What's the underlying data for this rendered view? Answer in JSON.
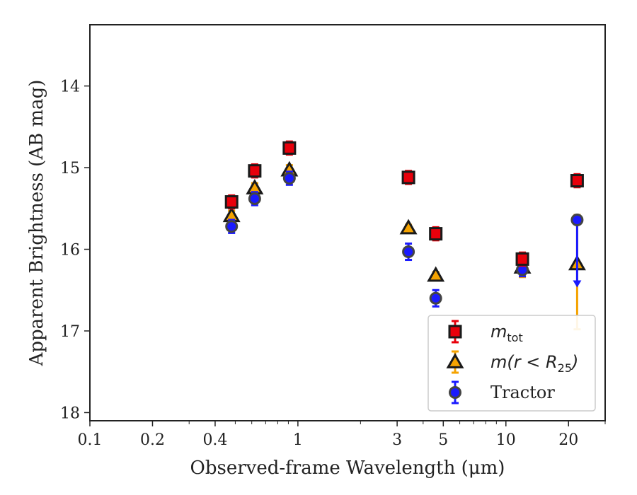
{
  "chart_data": {
    "type": "scatter",
    "xlabel": "Observed-frame Wavelength (μm)",
    "ylabel": "Apparent Brightness (AB mag)",
    "xscale": "log",
    "xlim": [
      0.1,
      30
    ],
    "ylim": [
      18.1,
      13.25
    ],
    "y_inverted": true,
    "x_ticks": [
      {
        "value": 0.1,
        "label": "0.1"
      },
      {
        "value": 0.2,
        "label": "0.2"
      },
      {
        "value": 0.4,
        "label": "0.4"
      },
      {
        "value": 1,
        "label": "1"
      },
      {
        "value": 3,
        "label": "3"
      },
      {
        "value": 5,
        "label": "5"
      },
      {
        "value": 10,
        "label": "10"
      },
      {
        "value": 20,
        "label": "20"
      }
    ],
    "y_ticks": [
      {
        "value": 14,
        "label": "14"
      },
      {
        "value": 15,
        "label": "15"
      },
      {
        "value": 16,
        "label": "16"
      },
      {
        "value": 17,
        "label": "17"
      },
      {
        "value": 18,
        "label": "18"
      }
    ],
    "grid": false,
    "legend": {
      "position": "bottom-right",
      "entries": [
        {
          "label_main": "m",
          "label_sub": "tot",
          "label_rest": "",
          "series": "mtot"
        },
        {
          "label_main": "m(r < R",
          "label_sub": "25",
          "label_rest": ")",
          "series": "mr25"
        },
        {
          "label_main": "Tractor",
          "label_sub": "",
          "label_rest": "",
          "series": "tractor"
        }
      ]
    },
    "series": [
      {
        "key": "mtot",
        "marker": "square",
        "color": "#e8000b",
        "edge": "#1a1a1a",
        "errcolor": "#e8000b",
        "points": [
          {
            "x": 0.48,
            "y": 15.42,
            "err": 0.08
          },
          {
            "x": 0.62,
            "y": 15.04,
            "err": 0.08
          },
          {
            "x": 0.91,
            "y": 14.76,
            "err": 0.08
          },
          {
            "x": 3.4,
            "y": 15.12,
            "err": 0.08
          },
          {
            "x": 4.6,
            "y": 15.81,
            "err": 0.08
          },
          {
            "x": 12.0,
            "y": 16.12,
            "err": 0.08
          },
          {
            "x": 22.0,
            "y": 15.16,
            "err": 0.08
          }
        ]
      },
      {
        "key": "mr25",
        "marker": "triangle",
        "color": "#f5a300",
        "edge": "#1a1a1a",
        "errcolor": "#f5a300",
        "points": [
          {
            "x": 0.48,
            "y": 15.59,
            "err": 0.06
          },
          {
            "x": 0.62,
            "y": 15.25,
            "err": 0.06
          },
          {
            "x": 0.91,
            "y": 15.03,
            "err": 0.06
          },
          {
            "x": 3.4,
            "y": 15.74,
            "err": 0.04
          },
          {
            "x": 4.6,
            "y": 16.32,
            "err": 0.04
          },
          {
            "x": 12.0,
            "y": 16.22,
            "err": 0.12
          },
          {
            "x": 22.0,
            "y": 16.18,
            "err_up": 0.6,
            "err_down": 0.8
          }
        ]
      },
      {
        "key": "tractor",
        "marker": "circle",
        "color": "#1a1aff",
        "edge": "#444444",
        "errcolor": "#1a1aff",
        "points": [
          {
            "x": 0.48,
            "y": 15.72,
            "err": 0.08
          },
          {
            "x": 0.62,
            "y": 15.38,
            "err": 0.08
          },
          {
            "x": 0.91,
            "y": 15.13,
            "err": 0.08
          },
          {
            "x": 3.4,
            "y": 16.03,
            "err": 0.1
          },
          {
            "x": 4.6,
            "y": 16.6,
            "err": 0.1
          },
          {
            "x": 12.0,
            "y": 16.25,
            "err": 0.08
          },
          {
            "x": 22.0,
            "y": 15.64,
            "upper_limit_to": 16.45
          }
        ]
      }
    ]
  }
}
